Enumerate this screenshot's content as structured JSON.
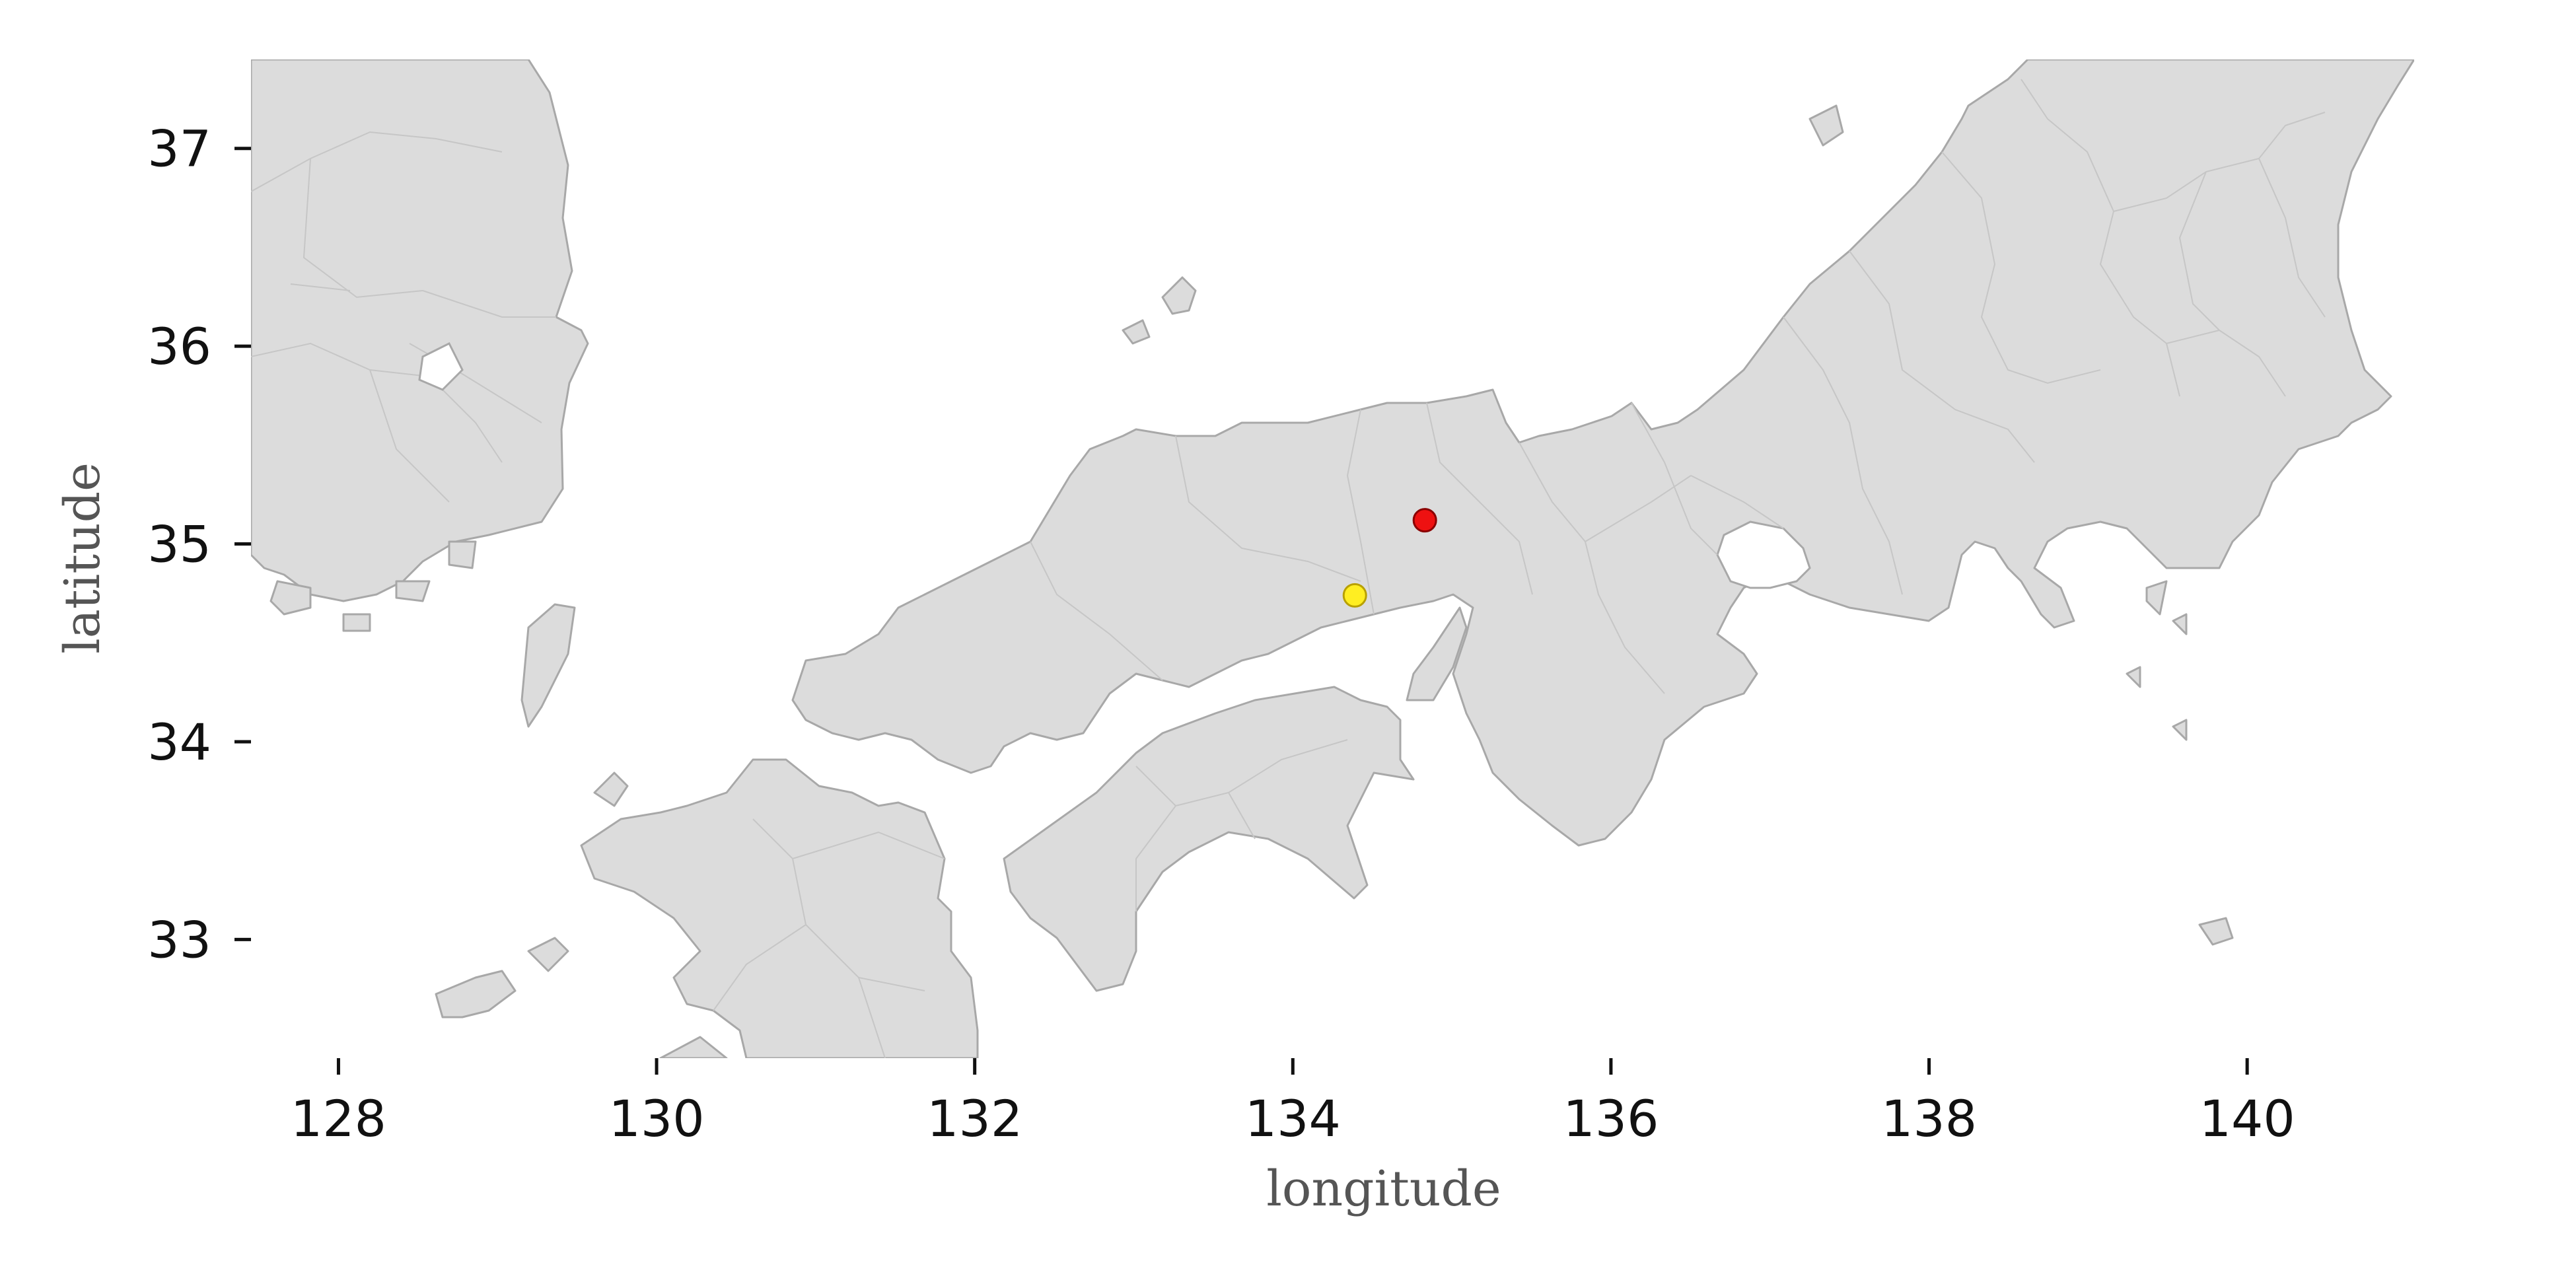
{
  "chart_data": {
    "type": "scatter",
    "title": "",
    "xlabel": "longitude",
    "ylabel": "latitude",
    "xlim": [
      127.45,
      141.05
    ],
    "ylim": [
      32.4,
      37.45
    ],
    "xticks": [
      128,
      130,
      132,
      134,
      136,
      138,
      140
    ],
    "yticks": [
      33,
      34,
      35,
      36,
      37
    ],
    "grid": false,
    "basemap": "gray land polygons with light gray administrative borders (Korea, Kyushu, Shikoku, Honshu)",
    "points": [
      {
        "x": 134.83,
        "y": 35.12,
        "color": "#ee1111"
      },
      {
        "x": 134.39,
        "y": 34.74,
        "color": "#ffee22"
      }
    ]
  }
}
